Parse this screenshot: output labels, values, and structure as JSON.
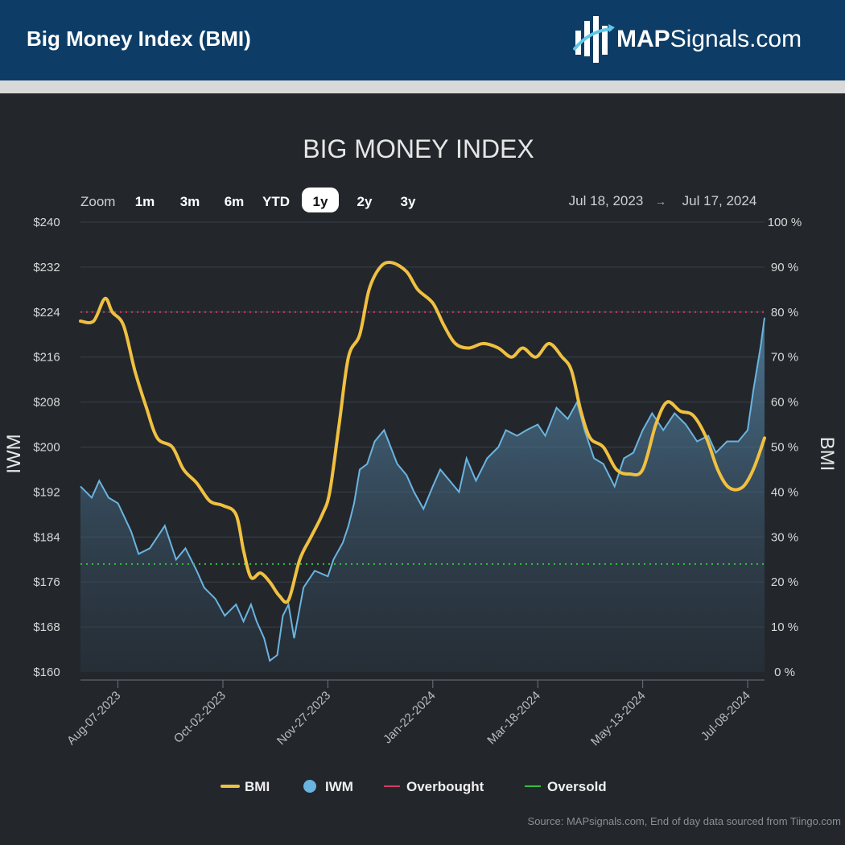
{
  "header": {
    "title": "Big Money Index (BMI)"
  },
  "logo": {
    "brand_bold": "MAP",
    "brand_rest": "Signals.com"
  },
  "zoom": {
    "label": "Zoom",
    "options": [
      "1m",
      "3m",
      "6m",
      "YTD",
      "1y",
      "2y",
      "3y"
    ],
    "selected": "1y"
  },
  "date_range": {
    "from": "Jul 18, 2023",
    "arrow": "→",
    "to": "Jul 17, 2024"
  },
  "source": "Source: MAPsignals.com, End of day data sourced from Tiingo.com",
  "colors": {
    "bmi": "#f0c040",
    "iwm": "#6ab4e0",
    "overbought": "#d23c64",
    "oversold": "#35c040",
    "header_bg": "#0d3d66",
    "panel_bg": "#23272c"
  },
  "chart_data": {
    "type": "line",
    "title": "BIG MONEY INDEX",
    "x_ticks": [
      "Aug-07-2023",
      "Oct-02-2023",
      "Nov-27-2023",
      "Jan-22-2024",
      "Mar-18-2024",
      "May-13-2024",
      "Jul-08-2024"
    ],
    "x_range": [
      "2023-07-18",
      "2024-07-17"
    ],
    "y_left": {
      "label": "IWM",
      "range": [
        160,
        240
      ],
      "ticks": [
        "$240",
        "$232",
        "$224",
        "$216",
        "$208",
        "$200",
        "$192",
        "$184",
        "$176",
        "$168",
        "$160"
      ]
    },
    "y_right": {
      "label": "BMI",
      "range": [
        0,
        100
      ],
      "ticks": [
        "100 %",
        "90 %",
        "80 %",
        "70 %",
        "60 %",
        "50 %",
        "40 %",
        "30 %",
        "20 %",
        "10 %",
        "0 %"
      ]
    },
    "overbought": 80,
    "oversold": 24,
    "legend": [
      "BMI",
      "IWM",
      "Overbought",
      "Oversold"
    ],
    "legend_position": "bottom",
    "series": [
      {
        "name": "BMI",
        "axis": "right",
        "points": [
          [
            "2023-07-18",
            78
          ],
          [
            "2023-07-25",
            78
          ],
          [
            "2023-07-31",
            83
          ],
          [
            "2023-08-04",
            80
          ],
          [
            "2023-08-10",
            77
          ],
          [
            "2023-08-16",
            67
          ],
          [
            "2023-08-22",
            59
          ],
          [
            "2023-08-28",
            52
          ],
          [
            "2023-09-05",
            50
          ],
          [
            "2023-09-11",
            45
          ],
          [
            "2023-09-18",
            42
          ],
          [
            "2023-09-25",
            38
          ],
          [
            "2023-10-02",
            37
          ],
          [
            "2023-10-09",
            35
          ],
          [
            "2023-10-13",
            27
          ],
          [
            "2023-10-17",
            21
          ],
          [
            "2023-10-22",
            22
          ],
          [
            "2023-10-27",
            20
          ],
          [
            "2023-11-01",
            17
          ],
          [
            "2023-11-06",
            16
          ],
          [
            "2023-11-12",
            25
          ],
          [
            "2023-11-18",
            30
          ],
          [
            "2023-11-24",
            35
          ],
          [
            "2023-11-28",
            40
          ],
          [
            "2023-12-03",
            55
          ],
          [
            "2023-12-08",
            70
          ],
          [
            "2023-12-14",
            75
          ],
          [
            "2023-12-19",
            85
          ],
          [
            "2023-12-25",
            90
          ],
          [
            "2023-12-31",
            91
          ],
          [
            "2024-01-08",
            89
          ],
          [
            "2024-01-14",
            85
          ],
          [
            "2024-01-22",
            82
          ],
          [
            "2024-01-28",
            77
          ],
          [
            "2024-02-03",
            73
          ],
          [
            "2024-02-10",
            72
          ],
          [
            "2024-02-18",
            73
          ],
          [
            "2024-02-26",
            72
          ],
          [
            "2024-03-04",
            70
          ],
          [
            "2024-03-10",
            72
          ],
          [
            "2024-03-17",
            70
          ],
          [
            "2024-03-24",
            73
          ],
          [
            "2024-03-31",
            70
          ],
          [
            "2024-04-05",
            67
          ],
          [
            "2024-04-10",
            58
          ],
          [
            "2024-04-15",
            52
          ],
          [
            "2024-04-22",
            50
          ],
          [
            "2024-04-29",
            45
          ],
          [
            "2024-05-06",
            44
          ],
          [
            "2024-05-13",
            45
          ],
          [
            "2024-05-20",
            55
          ],
          [
            "2024-05-26",
            60
          ],
          [
            "2024-06-02",
            58
          ],
          [
            "2024-06-09",
            57
          ],
          [
            "2024-06-16",
            52
          ],
          [
            "2024-06-22",
            45
          ],
          [
            "2024-06-28",
            41
          ],
          [
            "2024-07-05",
            41
          ],
          [
            "2024-07-11",
            45
          ],
          [
            "2024-07-17",
            52
          ]
        ]
      },
      {
        "name": "IWM",
        "axis": "left",
        "points": [
          [
            "2023-07-18",
            193
          ],
          [
            "2023-07-24",
            191
          ],
          [
            "2023-07-28",
            194
          ],
          [
            "2023-08-02",
            191
          ],
          [
            "2023-08-07",
            190
          ],
          [
            "2023-08-14",
            185
          ],
          [
            "2023-08-18",
            181
          ],
          [
            "2023-08-24",
            182
          ],
          [
            "2023-08-28",
            184
          ],
          [
            "2023-09-01",
            186
          ],
          [
            "2023-09-07",
            180
          ],
          [
            "2023-09-12",
            182
          ],
          [
            "2023-09-18",
            178
          ],
          [
            "2023-09-22",
            175
          ],
          [
            "2023-09-28",
            173
          ],
          [
            "2023-10-03",
            170
          ],
          [
            "2023-10-09",
            172
          ],
          [
            "2023-10-13",
            169
          ],
          [
            "2023-10-17",
            172
          ],
          [
            "2023-10-20",
            169
          ],
          [
            "2023-10-24",
            166
          ],
          [
            "2023-10-27",
            162
          ],
          [
            "2023-10-31",
            163
          ],
          [
            "2023-11-03",
            170
          ],
          [
            "2023-11-06",
            172
          ],
          [
            "2023-11-09",
            166
          ],
          [
            "2023-11-14",
            175
          ],
          [
            "2023-11-20",
            178
          ],
          [
            "2023-11-27",
            177
          ],
          [
            "2023-11-30",
            180
          ],
          [
            "2023-12-05",
            183
          ],
          [
            "2023-12-08",
            186
          ],
          [
            "2023-12-11",
            190
          ],
          [
            "2023-12-14",
            196
          ],
          [
            "2023-12-18",
            197
          ],
          [
            "2023-12-22",
            201
          ],
          [
            "2023-12-27",
            203
          ],
          [
            "2024-01-03",
            197
          ],
          [
            "2024-01-08",
            195
          ],
          [
            "2024-01-12",
            192
          ],
          [
            "2024-01-17",
            189
          ],
          [
            "2024-01-22",
            193
          ],
          [
            "2024-01-26",
            196
          ],
          [
            "2024-01-31",
            194
          ],
          [
            "2024-02-05",
            192
          ],
          [
            "2024-02-09",
            198
          ],
          [
            "2024-02-14",
            194
          ],
          [
            "2024-02-20",
            198
          ],
          [
            "2024-02-26",
            200
          ],
          [
            "2024-03-01",
            203
          ],
          [
            "2024-03-07",
            202
          ],
          [
            "2024-03-12",
            203
          ],
          [
            "2024-03-18",
            204
          ],
          [
            "2024-03-22",
            202
          ],
          [
            "2024-03-28",
            207
          ],
          [
            "2024-04-03",
            205
          ],
          [
            "2024-04-08",
            208
          ],
          [
            "2024-04-12",
            203
          ],
          [
            "2024-04-17",
            198
          ],
          [
            "2024-04-22",
            197
          ],
          [
            "2024-04-28",
            193
          ],
          [
            "2024-05-03",
            198
          ],
          [
            "2024-05-08",
            199
          ],
          [
            "2024-05-13",
            203
          ],
          [
            "2024-05-18",
            206
          ],
          [
            "2024-05-24",
            203
          ],
          [
            "2024-05-30",
            206
          ],
          [
            "2024-06-05",
            204
          ],
          [
            "2024-06-11",
            201
          ],
          [
            "2024-06-17",
            202
          ],
          [
            "2024-06-21",
            199
          ],
          [
            "2024-06-27",
            201
          ],
          [
            "2024-07-03",
            201
          ],
          [
            "2024-07-08",
            203
          ],
          [
            "2024-07-11",
            210
          ],
          [
            "2024-07-15",
            218
          ],
          [
            "2024-07-17",
            223
          ]
        ]
      }
    ]
  }
}
